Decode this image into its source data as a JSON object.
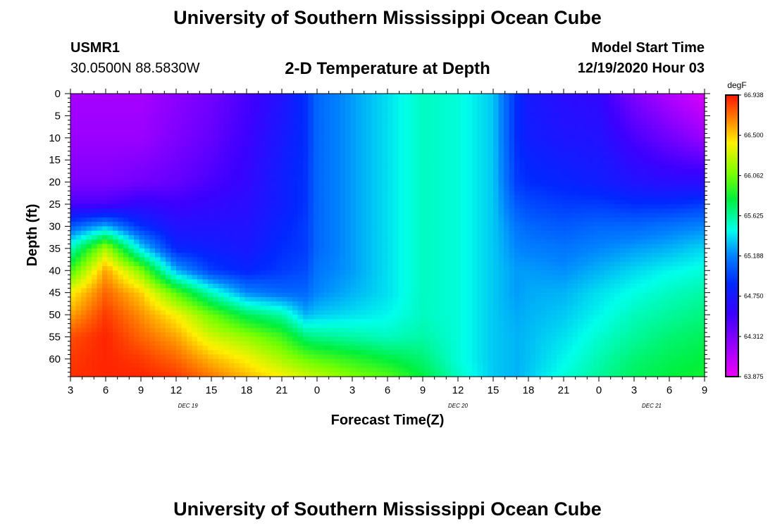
{
  "header": {
    "title": "University of Southern Mississippi Ocean Cube",
    "station_id": "USMR1",
    "coordinates": "30.0500N 88.5830W",
    "subtitle": "2-D Temperature at Depth",
    "model_start_label": "Model Start Time",
    "model_start_value": "12/19/2020 Hour 03"
  },
  "footer": {
    "title": "University of Southern Mississippi Ocean Cube"
  },
  "chart_data": {
    "type": "heatmap",
    "title": "2-D Temperature at Depth",
    "xlabel": "Forecast Time(Z)",
    "ylabel": "Depth (ft)",
    "x_tick_labels": [
      "3",
      "6",
      "9",
      "12",
      "15",
      "18",
      "21",
      "0",
      "3",
      "6",
      "9",
      "12",
      "15",
      "18",
      "21",
      "0",
      "3",
      "6",
      "9"
    ],
    "x_range_hours": [
      0,
      54
    ],
    "date_labels": [
      {
        "text": "DEC 19",
        "at_hour": 10
      },
      {
        "text": "DEC 20",
        "at_hour": 33
      },
      {
        "text": "DEC 21",
        "at_hour": 49.5
      }
    ],
    "y_ticks": [
      0,
      5,
      10,
      15,
      20,
      25,
      30,
      35,
      40,
      45,
      50,
      55,
      60
    ],
    "ylim": [
      0,
      64
    ],
    "colorbar": {
      "unit": "degF",
      "min": 63.875,
      "max": 66.938,
      "tick_labels": [
        "66.938",
        "66.500",
        "66.062",
        "65.625",
        "65.188",
        "64.750",
        "64.312",
        "63.875"
      ]
    },
    "temperature_field": {
      "x_hours": [
        0,
        3,
        6,
        9,
        12,
        15,
        18,
        20,
        21,
        24,
        27,
        30,
        33,
        36,
        38,
        39,
        42,
        45,
        48,
        51,
        54
      ],
      "depth_ft": [
        0,
        10,
        20,
        25,
        30,
        35,
        40,
        45,
        50,
        55,
        60,
        64
      ],
      "values_degF": [
        [
          64.15,
          64.2,
          64.3,
          64.5,
          65.05,
          65.55,
          65.95,
          66.4,
          66.6,
          66.8,
          66.85,
          66.87
        ],
        [
          64.15,
          64.2,
          64.3,
          64.5,
          65.3,
          66.2,
          66.6,
          66.75,
          66.85,
          66.9,
          66.9,
          66.9
        ],
        [
          64.15,
          64.2,
          64.35,
          64.6,
          64.9,
          65.4,
          66.1,
          66.5,
          66.65,
          66.75,
          66.85,
          66.9
        ],
        [
          64.25,
          64.3,
          64.4,
          64.55,
          64.7,
          64.85,
          65.3,
          66.0,
          66.4,
          66.6,
          66.75,
          66.85
        ],
        [
          64.35,
          64.4,
          64.5,
          64.6,
          64.7,
          64.8,
          64.95,
          65.55,
          66.05,
          66.3,
          66.55,
          66.7
        ],
        [
          64.5,
          64.55,
          64.6,
          64.65,
          64.7,
          64.75,
          64.85,
          65.2,
          65.75,
          66.15,
          66.4,
          66.55
        ],
        [
          64.7,
          64.75,
          64.8,
          64.8,
          64.85,
          64.9,
          64.95,
          65.1,
          65.6,
          65.95,
          66.2,
          66.4
        ],
        [
          64.9,
          64.9,
          64.92,
          64.92,
          64.95,
          64.95,
          65.0,
          65.1,
          65.3,
          65.7,
          66.05,
          66.3
        ],
        [
          65.1,
          65.1,
          65.1,
          65.1,
          65.1,
          65.1,
          65.15,
          65.2,
          65.35,
          65.65,
          66.0,
          66.25
        ],
        [
          65.25,
          65.25,
          65.25,
          65.25,
          65.25,
          65.25,
          65.25,
          65.3,
          65.4,
          65.6,
          65.9,
          66.1
        ],
        [
          65.4,
          65.4,
          65.4,
          65.4,
          65.4,
          65.4,
          65.4,
          65.4,
          65.45,
          65.55,
          65.8,
          66.0
        ],
        [
          65.55,
          65.55,
          65.55,
          65.55,
          65.55,
          65.55,
          65.55,
          65.55,
          65.55,
          65.6,
          65.7,
          65.8
        ],
        [
          65.5,
          65.5,
          65.5,
          65.5,
          65.5,
          65.5,
          65.5,
          65.5,
          65.5,
          65.5,
          65.5,
          65.55
        ],
        [
          65.35,
          65.35,
          65.35,
          65.35,
          65.35,
          65.35,
          65.35,
          65.35,
          65.35,
          65.35,
          65.35,
          65.35
        ],
        [
          64.9,
          64.9,
          64.95,
          65.05,
          65.15,
          65.2,
          65.25,
          65.25,
          65.28,
          65.3,
          65.3,
          65.3
        ],
        [
          64.75,
          64.8,
          64.9,
          65.0,
          65.1,
          65.18,
          65.25,
          65.28,
          65.3,
          65.32,
          65.33,
          65.35
        ],
        [
          64.65,
          64.72,
          64.85,
          64.95,
          65.05,
          65.15,
          65.22,
          65.3,
          65.35,
          65.4,
          65.45,
          65.5
        ],
        [
          64.6,
          64.7,
          64.8,
          64.95,
          65.1,
          65.2,
          65.3,
          65.4,
          65.45,
          65.52,
          65.58,
          65.62
        ],
        [
          64.3,
          64.5,
          64.7,
          64.9,
          65.1,
          65.25,
          65.38,
          65.48,
          65.56,
          65.62,
          65.7,
          65.74
        ],
        [
          64.1,
          64.35,
          64.65,
          64.9,
          65.15,
          65.3,
          65.45,
          65.55,
          65.62,
          65.7,
          65.76,
          65.8
        ],
        [
          63.95,
          64.2,
          64.65,
          64.95,
          65.2,
          65.38,
          65.5,
          65.6,
          65.68,
          65.75,
          65.8,
          65.85
        ]
      ]
    }
  }
}
